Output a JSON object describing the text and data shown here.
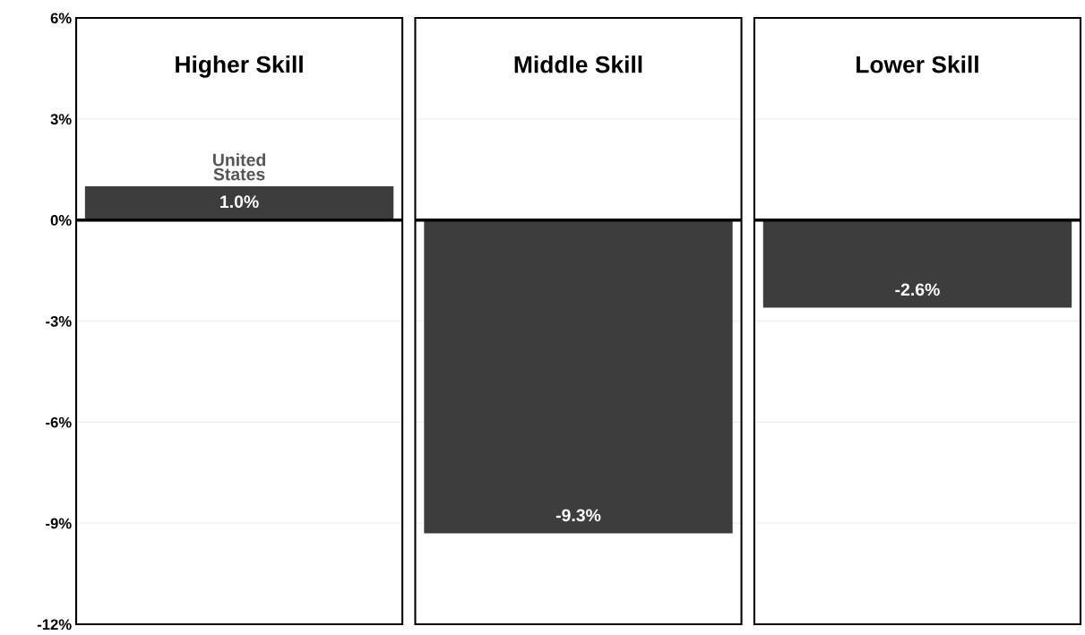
{
  "chart_data": {
    "type": "bar",
    "categories": [
      "Higher Skill",
      "Middle Skill",
      "Lower Skill"
    ],
    "series": [
      {
        "name": "United States",
        "color": "#3d3d3d",
        "values": [
          1.0,
          -9.3,
          -2.6
        ],
        "value_labels": [
          "1.0%",
          "-9.3%",
          "-2.6%"
        ]
      }
    ],
    "ylim": [
      -12,
      6
    ],
    "yticks": [
      {
        "value": -12,
        "label": "-12%"
      },
      {
        "value": -9,
        "label": "-9%"
      },
      {
        "value": -6,
        "label": "-6%"
      },
      {
        "value": -3,
        "label": "-3%"
      },
      {
        "value": 0,
        "label": "0%"
      },
      {
        "value": 3,
        "label": "3%"
      },
      {
        "value": 6,
        "label": "6%"
      }
    ],
    "grid": "y",
    "ref_lines": [
      {
        "axis": "y",
        "value": 0,
        "color": "#000000"
      }
    ]
  }
}
